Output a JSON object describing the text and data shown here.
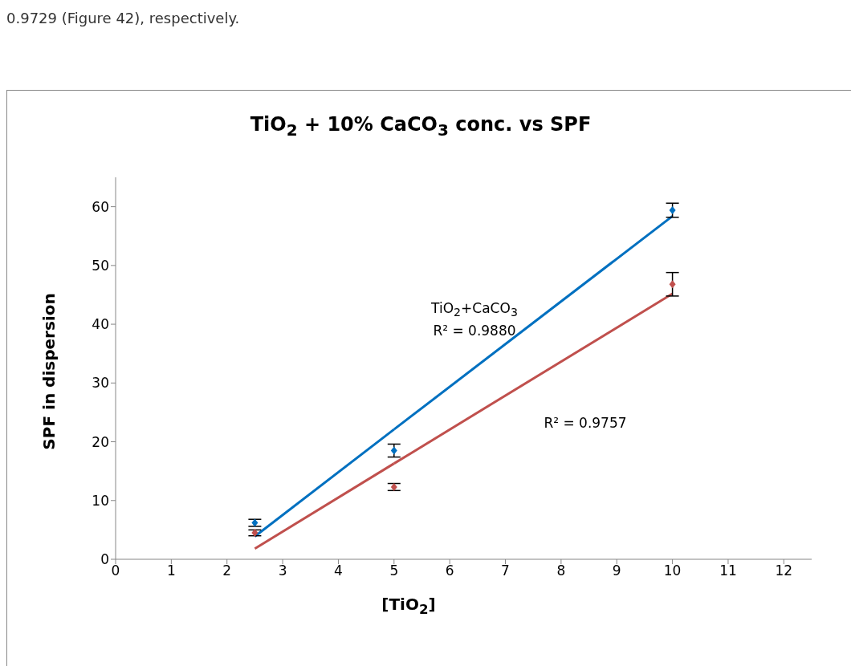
{
  "chart_data": {
    "type": "scatter",
    "title": "TiO$_{2}$ + 10% CaCO$_{3}$ conc. vs SPF",
    "xlabel": "[TiO$_{2}$]",
    "ylabel": "SPF in dispersion",
    "annotations": [
      "0.9729 (Figure 42), respectively.",
      "TiO$_{2}$+CaCO$_{3}$",
      "R² = 0.9880",
      "R² = 0.9757"
    ],
    "x": [
      2.5,
      5,
      10
    ],
    "series": [
      {
        "color": "#0070c0",
        "values": [
          6.2,
          18.5,
          59.4
        ],
        "errors": [
          0.6,
          1.1,
          1.2
        ],
        "marker": "diamond"
      },
      {
        "color": "#c0504d",
        "values": [
          4.5,
          12.3,
          46.8
        ],
        "errors": [
          0.5,
          0.6,
          2.0
        ],
        "marker": "diamond"
      },
      {
        "type": "line",
        "color": "#0070c0",
        "values": [
          3.9,
          22.1,
          58.4
        ]
      },
      {
        "type": "line",
        "color": "#c0504d",
        "values": [
          1.8,
          16.3,
          45.2
        ]
      }
    ],
    "xlim": [
      0,
      12.5
    ],
    "xticks": [
      0,
      1,
      2,
      3,
      4,
      5,
      6,
      7,
      8,
      9,
      10,
      11,
      12
    ],
    "ylim": [
      0,
      65
    ],
    "yticks": [
      0,
      10,
      20,
      30,
      40,
      50,
      60
    ],
    "grid": false,
    "legend": false
  }
}
